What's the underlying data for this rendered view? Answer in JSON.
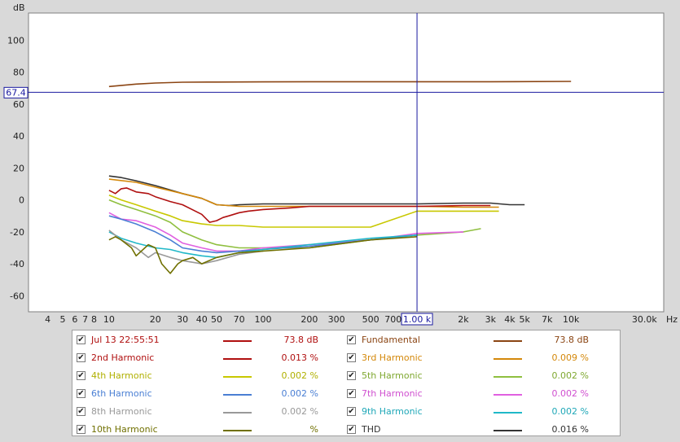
{
  "chart_data": {
    "type": "line",
    "ylabel": "dB",
    "xunit": "Hz",
    "xscale": "log",
    "xlim": [
      3,
      40000
    ],
    "ylim": [
      -70,
      117
    ],
    "grid": true,
    "yticks": [
      100,
      80,
      60,
      40,
      20,
      0,
      -20,
      -40,
      -60
    ],
    "xticks": [
      "4",
      "5",
      "6",
      "7",
      "8",
      "10",
      "20",
      "30",
      "40",
      "50",
      "70",
      "100",
      "200",
      "300",
      "500",
      "700",
      "1.00 k",
      "2k",
      "3k",
      "4k",
      "5k",
      "7k",
      "10k",
      "30.0k"
    ],
    "cursor": {
      "x_label": "1.00 k",
      "y_label": "67.4",
      "x": 1000,
      "y": 67.4
    },
    "series": [
      {
        "name": "Fundamental",
        "color": "#8b4513",
        "x": [
          10,
          15,
          20,
          30,
          50,
          100,
          200,
          500,
          1000,
          3000,
          10000
        ],
        "y": [
          71,
          72.5,
          73.2,
          73.7,
          73.8,
          73.9,
          74,
          74,
          74,
          74,
          74.2
        ]
      },
      {
        "name": "THD",
        "color": "#333333",
        "x": [
          10,
          12,
          15,
          20,
          30,
          40,
          50,
          60,
          70,
          100,
          200,
          500,
          1000,
          2000,
          3000,
          4000,
          5000
        ],
        "y": [
          15,
          14,
          12,
          9,
          4,
          1,
          -3,
          -3.5,
          -3,
          -2.5,
          -2.5,
          -2.5,
          -2.5,
          -2,
          -2,
          -3,
          -3
        ]
      },
      {
        "name": "3rd Harmonic",
        "color": "#d4880a",
        "x": [
          10,
          15,
          20,
          30,
          40,
          50,
          70,
          100,
          200,
          500,
          1000,
          2000,
          3000,
          3400
        ],
        "y": [
          13,
          11,
          8,
          4,
          1,
          -3,
          -4,
          -4,
          -4,
          -4,
          -4,
          -4.5,
          -4.5,
          -4.5
        ]
      },
      {
        "name": "2nd Harmonic",
        "color": "#b01010",
        "x": [
          10,
          11,
          12,
          13,
          15,
          18,
          20,
          25,
          30,
          40,
          45,
          50,
          55,
          60,
          70,
          80,
          100,
          150,
          200,
          300,
          500,
          1000,
          2000,
          3000
        ],
        "y": [
          6,
          4,
          7,
          7.5,
          5,
          4,
          2,
          -1,
          -3,
          -9,
          -14,
          -13,
          -11,
          -10,
          -8,
          -7,
          -6,
          -5,
          -4,
          -4,
          -4,
          -4,
          -3.5,
          -3.5
        ]
      },
      {
        "name": "4th Harmonic",
        "color": "#c8c800",
        "x": [
          10,
          12,
          15,
          20,
          25,
          30,
          40,
          50,
          70,
          100,
          200,
          500,
          1000,
          2000,
          3000,
          3400
        ],
        "y": [
          3,
          0,
          -3,
          -7,
          -10,
          -13,
          -15,
          -16,
          -16,
          -17,
          -17,
          -17,
          -7,
          -7,
          -7,
          -7
        ]
      },
      {
        "name": "5th Harmonic",
        "color": "#8fbf3f",
        "x": [
          10,
          12,
          15,
          20,
          25,
          30,
          40,
          50,
          70,
          100,
          200,
          500,
          1000,
          2000,
          2600
        ],
        "y": [
          0,
          -3,
          -6,
          -10,
          -14,
          -20,
          -25,
          -28,
          -30,
          -30,
          -30,
          -25,
          -22,
          -20,
          -18
        ]
      },
      {
        "name": "7th Harmonic",
        "color": "#e060e0",
        "x": [
          10,
          12,
          15,
          20,
          25,
          30,
          40,
          50,
          70,
          100,
          200,
          500,
          1000,
          2000
        ],
        "y": [
          -8,
          -12,
          -13,
          -17,
          -22,
          -27,
          -30,
          -32,
          -32,
          -30,
          -28,
          -25,
          -21,
          -20
        ]
      },
      {
        "name": "6th Harmonic",
        "color": "#4a7fd4",
        "x": [
          10,
          12,
          15,
          20,
          25,
          30,
          40,
          50,
          70,
          100,
          200,
          500,
          1000
        ],
        "y": [
          -10,
          -12,
          -15,
          -20,
          -25,
          -30,
          -32,
          -33,
          -32,
          -31,
          -29,
          -25,
          -22
        ]
      },
      {
        "name": "9th Harmonic",
        "color": "#20b8c8",
        "x": [
          10,
          12,
          15,
          20,
          25,
          30,
          40,
          50,
          70,
          100,
          200,
          500,
          1000
        ],
        "y": [
          -20,
          -24,
          -27,
          -30,
          -31,
          -33,
          -35,
          -36,
          -33,
          -31,
          -28,
          -24,
          -22
        ]
      },
      {
        "name": "8th Harmonic",
        "color": "#999999",
        "x": [
          10,
          12,
          15,
          18,
          20,
          25,
          30,
          40,
          50,
          70,
          100
        ],
        "y": [
          -19,
          -25,
          -30,
          -36,
          -33,
          -36,
          -38,
          -40,
          -38,
          -34,
          -32
        ]
      },
      {
        "name": "10th Harmonic",
        "color": "#707000",
        "x": [
          10,
          11,
          12,
          14,
          15,
          18,
          20,
          22,
          25,
          28,
          30,
          35,
          40,
          50,
          70,
          100,
          200,
          500,
          1000
        ],
        "y": [
          -25,
          -23,
          -25,
          -30,
          -35,
          -28,
          -30,
          -40,
          -46,
          -40,
          -38,
          -36,
          -40,
          -36,
          -33,
          -32,
          -30,
          -25,
          -23
        ]
      }
    ]
  },
  "legend": {
    "items": [
      {
        "name": "Jul 13 22:55:51",
        "value": "73.8 dB",
        "color": "#b01010",
        "text_color": "#b01010",
        "checked": "✔"
      },
      {
        "name": "Fundamental",
        "value": "73.8 dB",
        "color": "#8b4513",
        "text_color": "#8b4513",
        "checked": "✔"
      },
      {
        "name": "2nd Harmonic",
        "value": "0.013 %",
        "color": "#b01010",
        "text_color": "#b01010",
        "checked": "✔"
      },
      {
        "name": "3rd Harmonic",
        "value": "0.009 %",
        "color": "#d4880a",
        "text_color": "#d4880a",
        "checked": "✔"
      },
      {
        "name": "4th Harmonic",
        "value": "0.002 %",
        "color": "#c8c800",
        "text_color": "#b0b000",
        "checked": "✔"
      },
      {
        "name": "5th Harmonic",
        "value": "0.002 %",
        "color": "#8fbf3f",
        "text_color": "#7fa830",
        "checked": "✔"
      },
      {
        "name": "6th Harmonic",
        "value": "0.002 %",
        "color": "#4a7fd4",
        "text_color": "#4a7fd4",
        "checked": "✔"
      },
      {
        "name": "7th Harmonic",
        "value": "0.002 %",
        "color": "#e060e0",
        "text_color": "#d050d0",
        "checked": "✔"
      },
      {
        "name": "8th Harmonic",
        "value": "0.002 %",
        "color": "#999999",
        "text_color": "#999999",
        "checked": "✔"
      },
      {
        "name": "9th Harmonic",
        "value": "0.002 %",
        "color": "#20b8c8",
        "text_color": "#20a8b8",
        "checked": "✔"
      },
      {
        "name": "10th Harmonic",
        "value": "%",
        "color": "#707000",
        "text_color": "#707000",
        "checked": "✔"
      },
      {
        "name": "THD",
        "value": "0.016 %",
        "color": "#333333",
        "text_color": "#333333",
        "checked": "✔"
      }
    ]
  }
}
